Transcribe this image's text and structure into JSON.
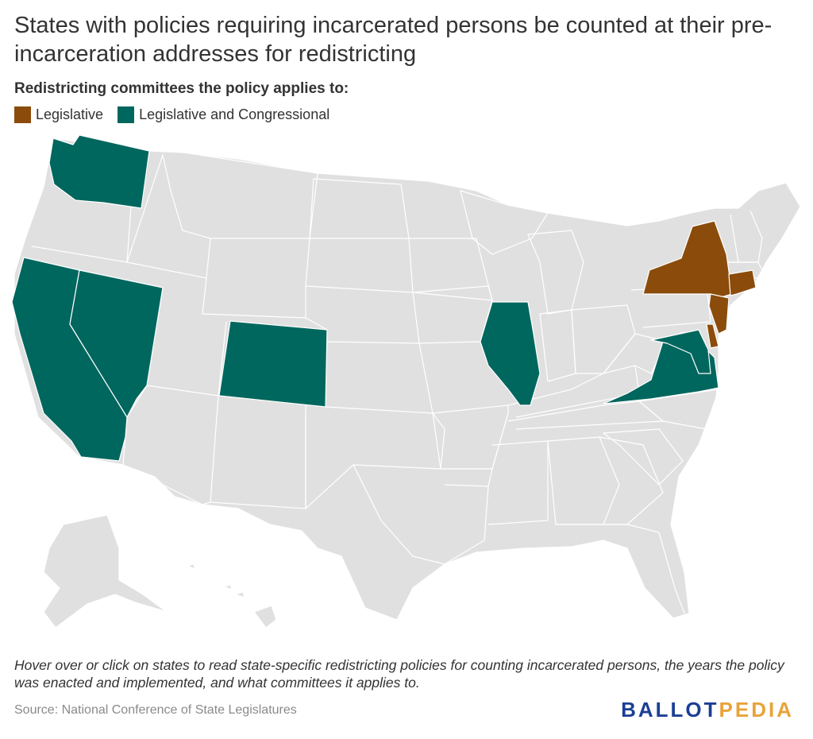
{
  "title": "States with policies requiring incarcerated persons be counted at their pre-incarceration addresses for redistricting",
  "legend": {
    "title": "Redistricting committees the policy applies to:",
    "items": [
      {
        "label": "Legislative",
        "color": "#8b4c0b"
      },
      {
        "label": "Legislative and Congressional",
        "color": "#00675e"
      }
    ]
  },
  "colors": {
    "default_state": "#e0e0e0",
    "legislative": "#8b4c0b",
    "legislative_and_congressional": "#00675e",
    "border": "#ffffff"
  },
  "highlighted_states": {
    "legislative": [
      "New York",
      "Connecticut",
      "New Jersey",
      "Delaware"
    ],
    "legislative_and_congressional": [
      "Washington",
      "California",
      "Nevada",
      "Colorado",
      "Illinois",
      "Virginia",
      "Maryland"
    ]
  },
  "note": "Hover over or click on states to read state-specific redistricting policies for counting incarcerated persons, the years the policy was enacted and implemented, and what committees it applies to.",
  "source": "Source: National Conference of State Legislatures",
  "brand": {
    "part1": "BALLOT",
    "part2": "PEDIA"
  }
}
